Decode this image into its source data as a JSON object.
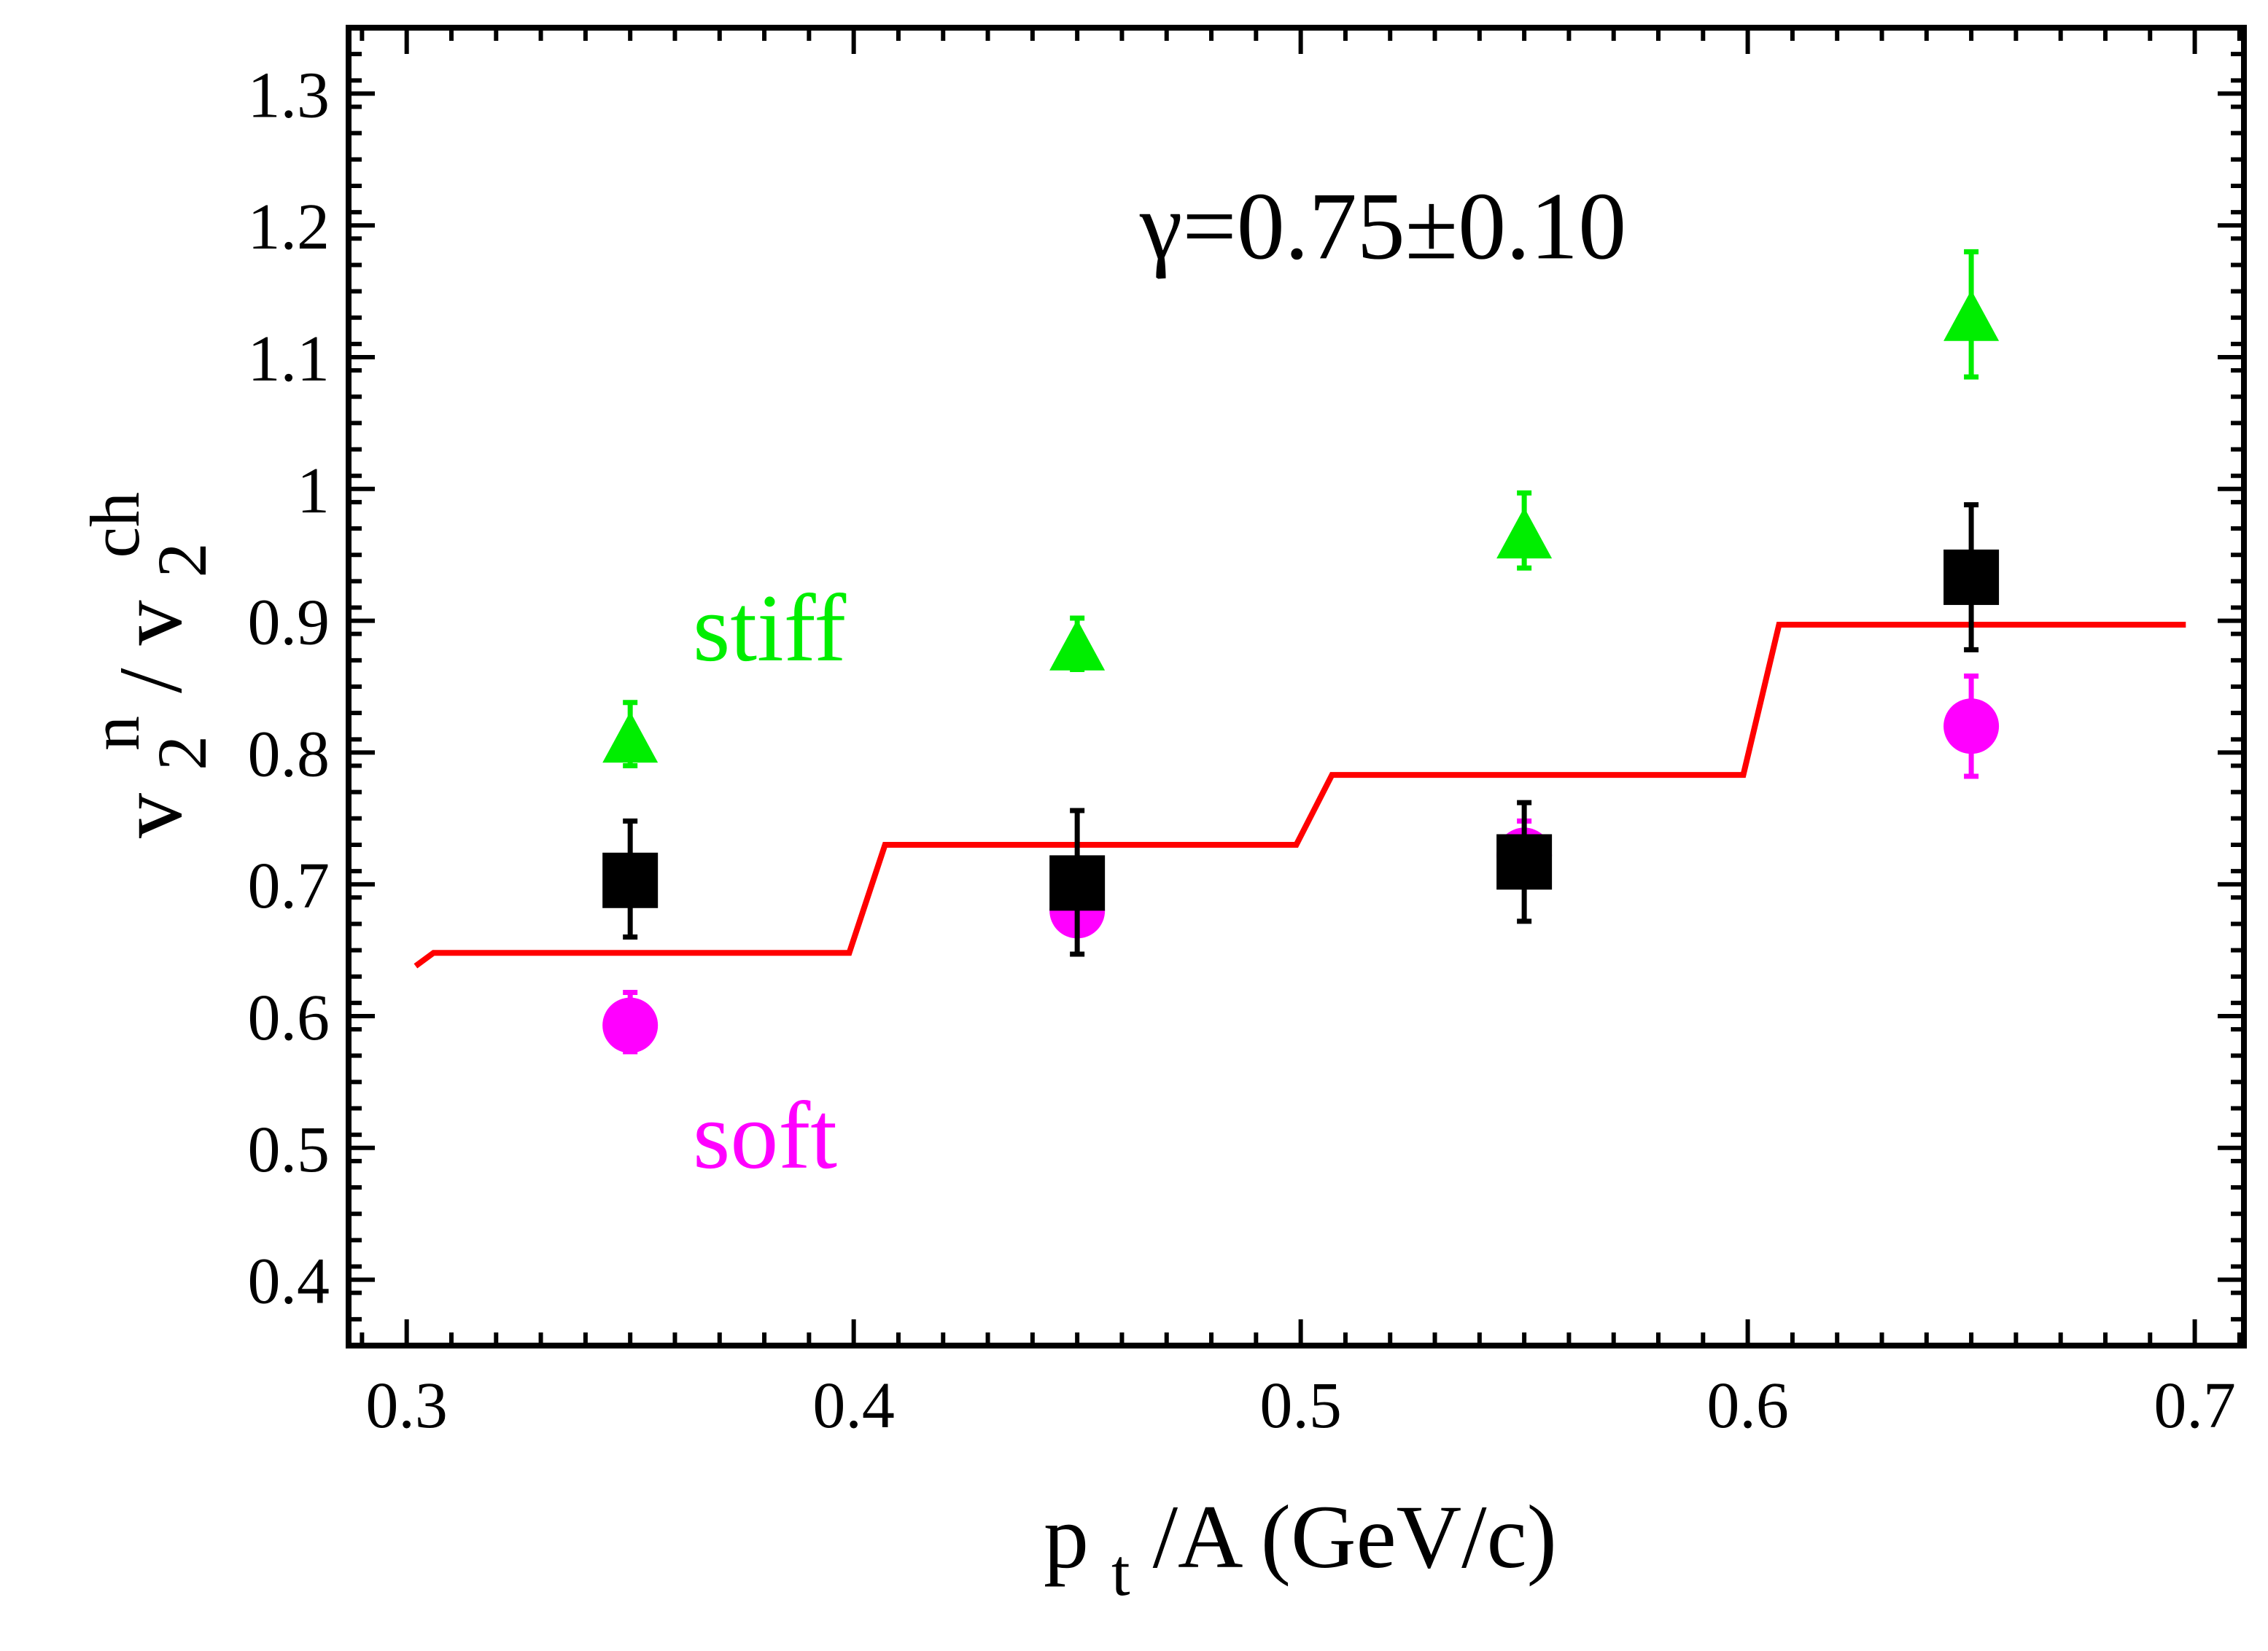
{
  "chart_data": {
    "type": "scatter",
    "xlim": [
      0.287,
      0.711
    ],
    "ylim": [
      0.35,
      1.35
    ],
    "xticks": [
      0.3,
      0.4,
      0.5,
      0.6,
      0.7
    ],
    "yticks": [
      0.4,
      0.5,
      0.6,
      0.7,
      0.8,
      0.9,
      1.0,
      1.1,
      1.2,
      1.3
    ],
    "xtick_labels": [
      "0.3",
      "0.4",
      "0.5",
      "0.6",
      "0.7"
    ],
    "ytick_labels": [
      "0.4",
      "0.5",
      "0.6",
      "0.7",
      "0.8",
      "0.9",
      "1",
      "1.1",
      "1.2",
      "1.3"
    ],
    "grid": false,
    "xlabel": {
      "main": "p",
      "sub": "t",
      "rest": "/A (GeV/c)"
    },
    "ylabel": {
      "v1": "v",
      "sub1": "2",
      "sup1": "n",
      "slash": "/",
      "v2": "v",
      "sub2": "2",
      "sup2": "ch"
    },
    "annotations": [
      {
        "text": "γ=0.75±0.10",
        "x": 0.464,
        "y": 1.175,
        "color": "#000000"
      },
      {
        "text": "stiff",
        "x": 0.364,
        "y": 0.87,
        "color": "#00ee00"
      },
      {
        "text": "soft",
        "x": 0.364,
        "y": 0.485,
        "color": "#ff00ff"
      }
    ],
    "series": [
      {
        "marker": "triangle",
        "color": "#00ee00",
        "x": [
          0.35,
          0.45,
          0.55,
          0.65
        ],
        "y": [
          0.81,
          0.88,
          0.965,
          1.13
        ],
        "yerr_low": [
          0.79,
          0.863,
          0.94,
          1.085
        ],
        "yerr_high": [
          0.838,
          0.902,
          0.997,
          1.18
        ]
      },
      {
        "marker": "circle",
        "color": "#ff00ff",
        "x": [
          0.35,
          0.45,
          0.55,
          0.65
        ],
        "y": [
          0.593,
          0.68,
          0.722,
          0.82
        ],
        "yerr_low": [
          0.573,
          0.662,
          0.705,
          0.782
        ],
        "yerr_high": [
          0.618,
          0.698,
          0.748,
          0.858
        ]
      },
      {
        "marker": "square",
        "color": "#000000",
        "x": [
          0.35,
          0.45,
          0.55,
          0.65
        ],
        "y": [
          0.703,
          0.701,
          0.717,
          0.933
        ],
        "yerr_low": [
          0.66,
          0.647,
          0.672,
          0.878
        ],
        "yerr_high": [
          0.748,
          0.756,
          0.762,
          0.988
        ]
      },
      {
        "type": "line",
        "color": "#ff0000",
        "points": [
          [
            0.302,
            0.638
          ],
          [
            0.306,
            0.648
          ],
          [
            0.399,
            0.648
          ],
          [
            0.407,
            0.73
          ],
          [
            0.499,
            0.73
          ],
          [
            0.507,
            0.783
          ],
          [
            0.599,
            0.783
          ],
          [
            0.607,
            0.897
          ],
          [
            0.698,
            0.897
          ]
        ]
      }
    ]
  }
}
